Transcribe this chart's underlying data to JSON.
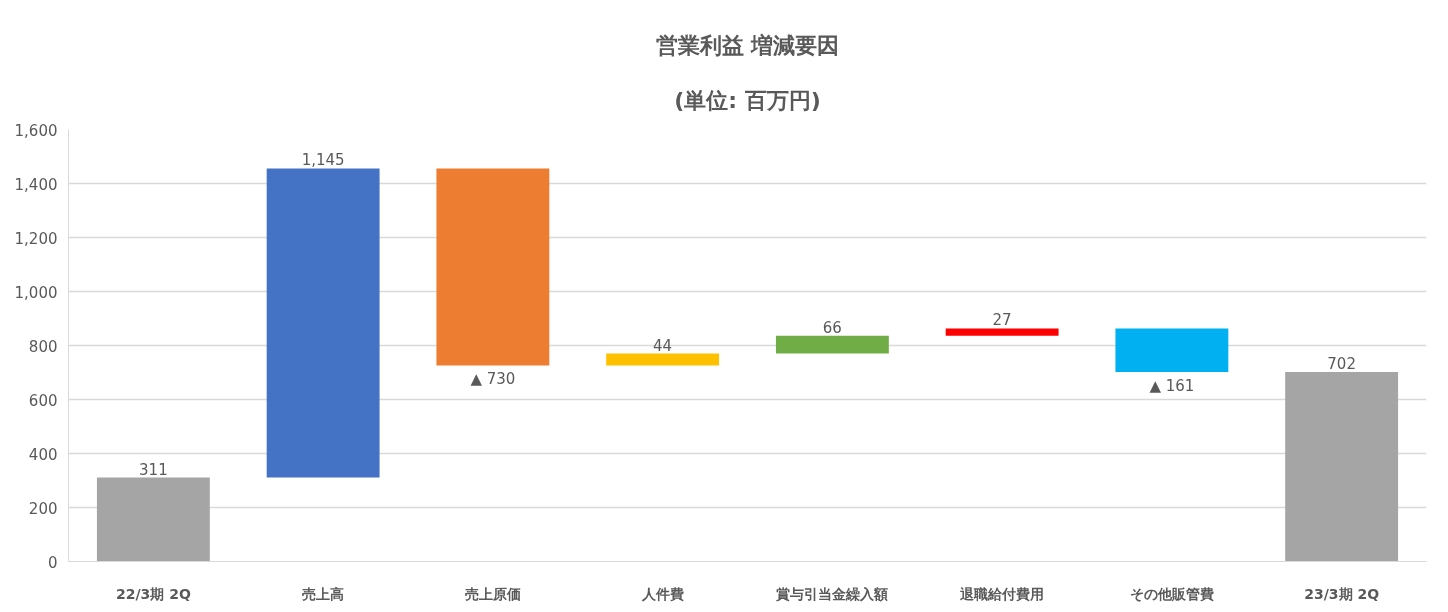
{
  "chart_data": {
    "type": "bar",
    "title": "営業利益 増減要因",
    "subtitle": "(単位: 百万円)",
    "categories": [
      "22/3期 2Q",
      "売上高",
      "売上原価",
      "人件費",
      "賞与引当金繰入額",
      "退職給付費用",
      "その他販管費",
      "23/3期 2Q"
    ],
    "values": [
      311,
      1145,
      -730,
      44,
      66,
      27,
      -161,
      702
    ],
    "base": [
      0,
      311,
      1456,
      726,
      770,
      836,
      863,
      0
    ],
    "colors": [
      "#a5a5a5",
      "#4472c4",
      "#ed7d31",
      "#ffc000",
      "#70ad47",
      "#ff0000",
      "#00b0f0",
      "#a5a5a5"
    ],
    "value_labels": [
      "311",
      "1,145",
      "▲ 730",
      "44",
      "66",
      "27",
      "▲ 161",
      "702"
    ],
    "ylim": [
      0,
      1600
    ],
    "yticks": [
      0,
      200,
      400,
      600,
      800,
      {
        "value": 1000,
        "label": "1,000"
      },
      {
        "value": 1200,
        "label": "1,200"
      },
      {
        "value": 1400,
        "label": "1,400"
      },
      {
        "value": 1600,
        "label": "1,600"
      }
    ],
    "grid": "y"
  }
}
